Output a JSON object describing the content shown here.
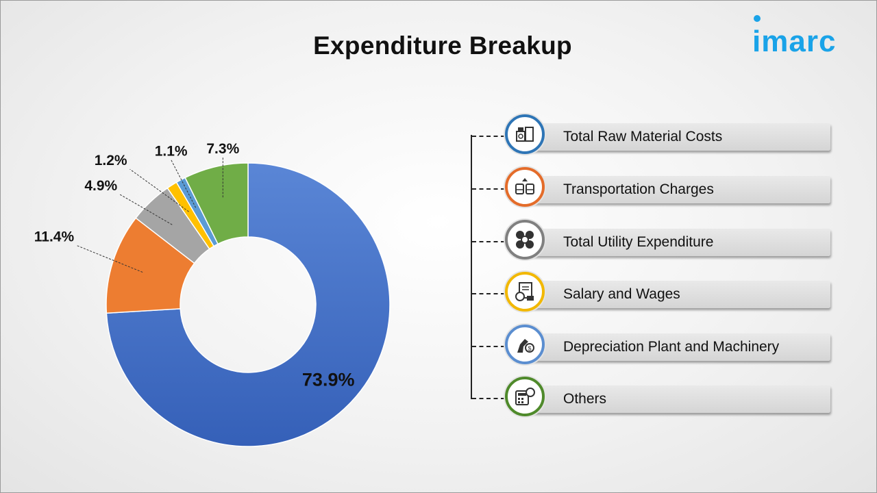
{
  "title": "Expenditure Breakup",
  "logo": "imarc",
  "chart_data": {
    "type": "pie",
    "style": "donut",
    "title": "Expenditure Breakup",
    "slices": [
      {
        "name": "Total Raw Material Costs",
        "value": 73.9,
        "label": "73.9%",
        "color": "#4472C4"
      },
      {
        "name": "Transportation Charges",
        "value": 11.4,
        "label": "11.4%",
        "color": "#ED7D31"
      },
      {
        "name": "Total Utility Expenditure",
        "value": 4.9,
        "label": "4.9%",
        "color": "#A5A5A5"
      },
      {
        "name": "Salary and Wages",
        "value": 1.2,
        "label": "1.2%",
        "color": "#FFC000"
      },
      {
        "name": "Depreciation Plant and Machinery",
        "value": 1.1,
        "label": "1.1%",
        "color": "#5B9BD5"
      },
      {
        "name": "Others",
        "value": 7.3,
        "label": "7.3%",
        "color": "#70AD47"
      }
    ],
    "legend_position": "right"
  },
  "legend": [
    {
      "label": "Total Raw Material Costs",
      "icon": "raw-material-icon",
      "ring": "#2e75b6"
    },
    {
      "label": "Transportation Charges",
      "icon": "transportation-icon",
      "ring": "#e46c2a"
    },
    {
      "label": "Total Utility Expenditure",
      "icon": "utility-icon",
      "ring": "#808080"
    },
    {
      "label": "Salary and Wages",
      "icon": "salary-icon",
      "ring": "#f2b800"
    },
    {
      "label": "Depreciation Plant and Machinery",
      "icon": "machinery-icon",
      "ring": "#5b8ed0"
    },
    {
      "label": "Others",
      "icon": "others-icon",
      "ring": "#4f8a2b"
    }
  ]
}
